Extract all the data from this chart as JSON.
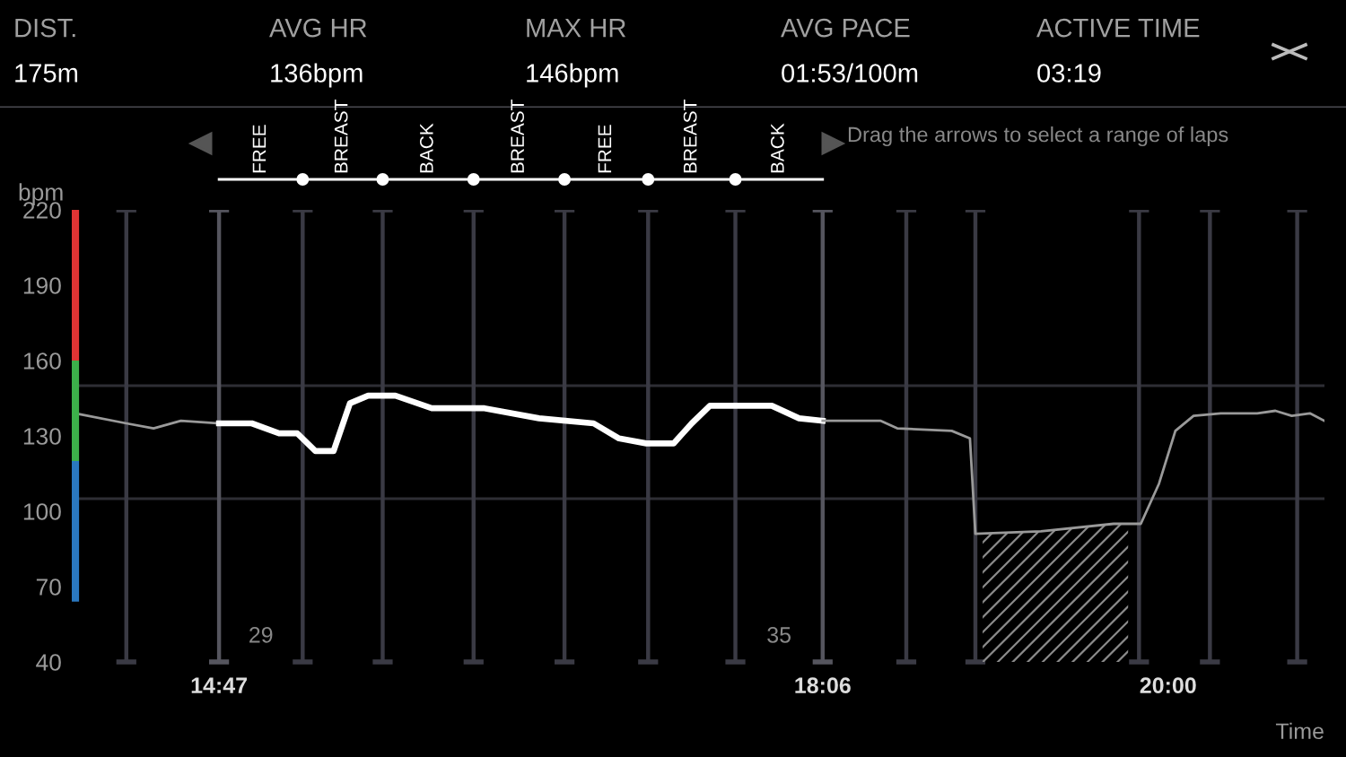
{
  "chart_data": [
    {
      "type": "other",
      "annotations": [
        "DIST.",
        "175m",
        "AVG HR",
        "136bpm",
        "MAX HR",
        "146bpm",
        "AVG PACE",
        "01:53/100m",
        "ACTIVE TIME",
        "03:19"
      ]
    },
    {
      "type": "line",
      "xlabel": "Time",
      "ylabel": "bpm",
      "annotations": [
        "Drag the arrows to select a range of laps",
        "FREE",
        "BREAST",
        "BACK",
        "BREAST",
        "FREE",
        "BREAST",
        "BACK",
        "29",
        "35"
      ],
      "series": [
        {
          "type": "bar",
          "x": [
            13.99
          ],
          "base": [
            160
          ],
          "values": [
            60
          ],
          "color": "#e03434"
        },
        {
          "type": "bar",
          "x": [
            13.99
          ],
          "base": [
            120
          ],
          "values": [
            40
          ],
          "color": "#3cb04a"
        },
        {
          "type": "bar",
          "x": [
            13.99
          ],
          "base": [
            64
          ],
          "values": [
            56
          ],
          "color": "#2a78c0"
        },
        {
          "color": "#9a9a9a",
          "x": [
            13.99,
            14.27,
            14.42,
            14.57,
            14.78
          ],
          "values": [
            139,
            135,
            133,
            136,
            135
          ]
        },
        {
          "color": "#ffffff",
          "x": [
            14.78,
            14.96,
            15.11,
            15.21,
            15.31,
            15.41,
            15.5,
            15.6,
            15.75,
            15.95,
            16.24,
            16.54,
            16.84,
            16.98,
            17.13,
            17.28,
            17.38,
            17.48,
            17.82,
            17.97,
            18.1
          ],
          "values": [
            135,
            135,
            131,
            131,
            124,
            124,
            143,
            146,
            146,
            141,
            141,
            137,
            135,
            129,
            127,
            127,
            135,
            142,
            142,
            137,
            136
          ]
        },
        {
          "color": "#9a9a9a",
          "x": [
            18.1,
            18.42,
            18.51,
            18.81,
            18.91,
            18.94,
            19.3,
            19.7,
            19.85,
            19.95,
            20.04,
            20.14,
            20.29,
            20.49,
            20.59,
            20.68,
            20.78,
            20.86
          ],
          "values": [
            136,
            136,
            133,
            132,
            129,
            91,
            92,
            95,
            95,
            111,
            132,
            138,
            139,
            139,
            140,
            138,
            139,
            136
          ]
        }
      ],
      "xlim": [
        13.97,
        20.86
      ],
      "ylim": [
        40,
        220
      ],
      "xticks": [
        {
          "value": 14.78,
          "label": "14:47"
        },
        {
          "value": 18.1,
          "label": "18:06"
        },
        {
          "value": 20.0,
          "label": "20:00"
        }
      ],
      "yticks": [
        40,
        70,
        100,
        130,
        160,
        190,
        220
      ],
      "ref_lines": [
        {
          "axis": "y",
          "value": 150,
          "color": "#2e2e34"
        },
        {
          "axis": "y",
          "value": 105,
          "color": "#2e2e34"
        },
        {
          "axis": "x",
          "value": 14.27,
          "color": "#3a3a44"
        },
        {
          "axis": "x",
          "value": 14.78,
          "color": "#55555e"
        },
        {
          "axis": "x",
          "value": 15.24,
          "color": "#3a3a44"
        },
        {
          "axis": "x",
          "value": 15.68,
          "color": "#3a3a44"
        },
        {
          "axis": "x",
          "value": 16.18,
          "color": "#3a3a44"
        },
        {
          "axis": "x",
          "value": 16.68,
          "color": "#3a3a44"
        },
        {
          "axis": "x",
          "value": 17.14,
          "color": "#3a3a44"
        },
        {
          "axis": "x",
          "value": 17.62,
          "color": "#3a3a44"
        },
        {
          "axis": "x",
          "value": 18.1,
          "color": "#55555e"
        },
        {
          "axis": "x",
          "value": 18.56,
          "color": "#3a3a44"
        },
        {
          "axis": "x",
          "value": 18.94,
          "color": "#3a3a44"
        },
        {
          "axis": "x",
          "value": 19.84,
          "color": "#3a3a44"
        },
        {
          "axis": "x",
          "value": 20.23,
          "color": "#3a3a44"
        },
        {
          "axis": "x",
          "value": 20.71,
          "color": "#3a3a44"
        }
      ],
      "bands": [
        {
          "axis": "x",
          "from": 18.98,
          "to": 19.78,
          "color": "#8a8a8a"
        }
      ],
      "grid": false,
      "legend": false,
      "line_style": "solid",
      "marker": "none"
    }
  ]
}
